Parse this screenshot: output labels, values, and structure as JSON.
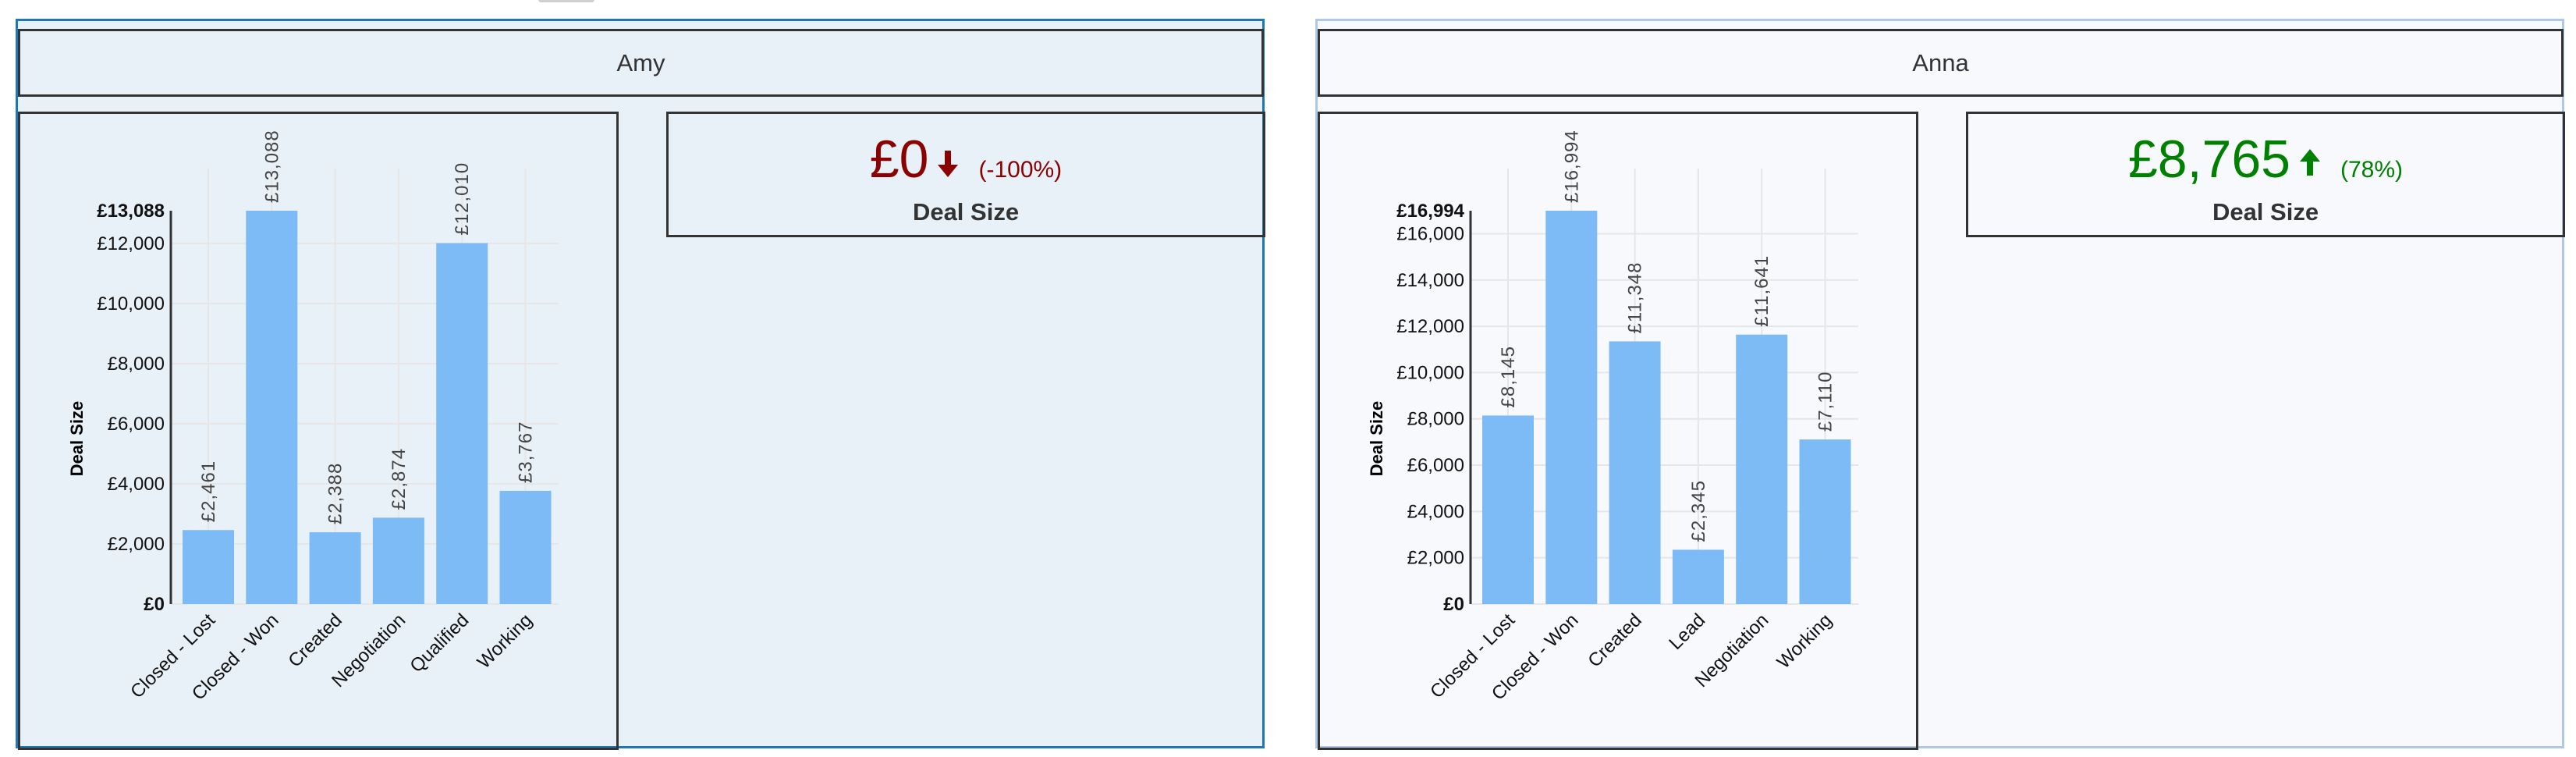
{
  "panels": [
    {
      "name": "Amy",
      "selected": true,
      "kpi": {
        "value": "£0",
        "direction": "down",
        "change": "(-100%)",
        "label": "Deal Size",
        "color": "#8b0000"
      },
      "chart": {
        "ylabel": "Deal Size",
        "max_label": "£13,088",
        "zero_label": "£0",
        "ticks": [
          "£2,000",
          "£4,000",
          "£6,000",
          "£8,000",
          "£10,000",
          "£12,000"
        ]
      }
    },
    {
      "name": "Anna",
      "selected": false,
      "kpi": {
        "value": "£8,765",
        "direction": "up",
        "change": "(78%)",
        "label": "Deal Size",
        "color": "#008000"
      },
      "chart": {
        "ylabel": "Deal Size",
        "max_label": "£16,994",
        "zero_label": "£0",
        "ticks": [
          "£2,000",
          "£4,000",
          "£6,000",
          "£8,000",
          "£10,000",
          "£12,000",
          "£14,000",
          "£16,000"
        ]
      }
    }
  ],
  "colors": {
    "bar": "#7dbbf6",
    "selected_border": "#1f77b4",
    "unselected_border": "#aec8e6",
    "kpi_down": "#8b0000",
    "kpi_up": "#008000"
  },
  "chart_data": [
    {
      "type": "bar",
      "title": "Amy",
      "xlabel": "",
      "ylabel": "Deal Size",
      "categories": [
        "Closed - Lost",
        "Closed - Won",
        "Created",
        "Negotiation",
        "Qualified",
        "Working"
      ],
      "values": [
        2461,
        13088,
        2388,
        2874,
        12010,
        3767
      ],
      "value_labels": [
        "£2,461",
        "£13,088",
        "£2,388",
        "£2,874",
        "£12,010",
        "£3,767"
      ],
      "ylim": [
        0,
        13088
      ],
      "yticks": [
        0,
        2000,
        4000,
        6000,
        8000,
        10000,
        12000,
        13088
      ],
      "grid": true,
      "legend": "none"
    },
    {
      "type": "bar",
      "title": "Anna",
      "xlabel": "",
      "ylabel": "Deal Size",
      "categories": [
        "Closed - Lost",
        "Closed - Won",
        "Created",
        "Lead",
        "Negotiation",
        "Working"
      ],
      "values": [
        8145,
        16994,
        11348,
        2345,
        11641,
        7110
      ],
      "value_labels": [
        "£8,145",
        "£16,994",
        "£11,348",
        "£2,345",
        "£11,641",
        "£7,110"
      ],
      "ylim": [
        0,
        16994
      ],
      "yticks": [
        0,
        2000,
        4000,
        6000,
        8000,
        10000,
        12000,
        14000,
        16000,
        16994
      ],
      "grid": true,
      "legend": "none"
    }
  ]
}
